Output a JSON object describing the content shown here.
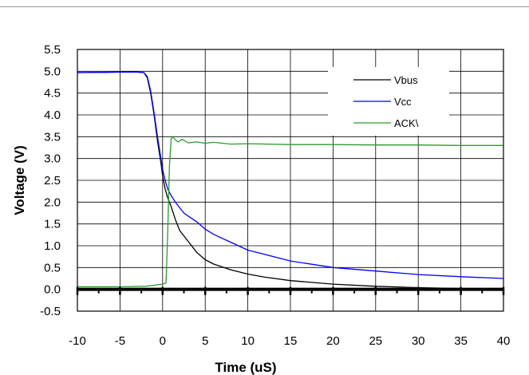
{
  "chart_data": {
    "type": "line",
    "title": "",
    "xlabel": "Time (uS)",
    "ylabel": "Voltage (V)",
    "xlim": [
      -10,
      40
    ],
    "ylim": [
      -0.5,
      5.5
    ],
    "x_ticks": [
      "-10",
      "-5",
      "0",
      "5",
      "10",
      "15",
      "20",
      "25",
      "30",
      "35",
      "40"
    ],
    "y_ticks": [
      "5.5",
      "5.0",
      "4.5",
      "4.0",
      "3.5",
      "3.0",
      "2.5",
      "2.0",
      "1.5",
      "1.0",
      "0.5",
      "0.0",
      "-0.5"
    ],
    "grid": true,
    "legend_position": "top-right",
    "series": [
      {
        "name": "Vbus",
        "color": "#000000",
        "x": [
          -10,
          -5,
          -3,
          -2.2,
          -1.8,
          -1.4,
          -1,
          -0.6,
          -0.2,
          0,
          0.3,
          0.6,
          1,
          1.5,
          2,
          3,
          4,
          5,
          6,
          8,
          10,
          12,
          15,
          20,
          25,
          30,
          35,
          40
        ],
        "y": [
          4.97,
          4.98,
          4.98,
          4.97,
          4.85,
          4.5,
          4.0,
          3.4,
          2.9,
          2.6,
          2.3,
          2.1,
          1.9,
          1.6,
          1.35,
          1.1,
          0.85,
          0.68,
          0.58,
          0.45,
          0.35,
          0.28,
          0.2,
          0.12,
          0.07,
          0.04,
          0.02,
          0.01
        ]
      },
      {
        "name": "Vcc",
        "color": "#0000ff",
        "x": [
          -10,
          -5,
          -3,
          -2.2,
          -1.8,
          -1.4,
          -1,
          -0.6,
          -0.2,
          0,
          0.3,
          0.6,
          1,
          1.5,
          2,
          2.5,
          3,
          4,
          5,
          6,
          8,
          10,
          12,
          15,
          20,
          25,
          30,
          35,
          40
        ],
        "y": [
          4.97,
          4.98,
          4.98,
          4.97,
          4.88,
          4.55,
          4.05,
          3.5,
          3.0,
          2.75,
          2.5,
          2.3,
          2.15,
          2.0,
          1.87,
          1.75,
          1.68,
          1.55,
          1.38,
          1.26,
          1.08,
          0.9,
          0.8,
          0.65,
          0.5,
          0.42,
          0.34,
          0.29,
          0.25
        ]
      },
      {
        "name": "ACK\\",
        "color": "#2e9a2e",
        "x": [
          -10,
          -5,
          -2,
          0,
          0.4,
          0.6,
          0.8,
          1.0,
          1.2,
          1.4,
          1.8,
          2.3,
          3,
          4,
          5,
          6,
          8,
          10,
          15,
          20,
          25,
          30,
          35,
          40
        ],
        "y": [
          0.06,
          0.06,
          0.07,
          0.12,
          0.15,
          1.3,
          2.8,
          3.45,
          3.5,
          3.45,
          3.38,
          3.44,
          3.36,
          3.38,
          3.35,
          3.37,
          3.33,
          3.34,
          3.32,
          3.32,
          3.31,
          3.31,
          3.3,
          3.3
        ]
      }
    ]
  }
}
